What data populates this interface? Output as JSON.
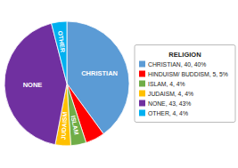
{
  "chart_data": {
    "type": "pie",
    "title": "RELIGION",
    "categories": [
      "CHRISTIAN, 40, 40%",
      "HINDUISM/ BUDDISM, 5, 5%",
      "ISLAM, 4, 4%",
      "JUDAISM, 4, 4%",
      "NONE, 43, 43%",
      "OTHER, 4, 4%"
    ],
    "wedge_labels": [
      "CHRISTIAN",
      null,
      "ISLAM",
      "JUDAISM",
      "NONE",
      "OTHER"
    ],
    "values": [
      40,
      5,
      4,
      4,
      43,
      4
    ],
    "colors": [
      "#5B9BD5",
      "#FF0000",
      "#70AD47",
      "#FFC000",
      "#7030A0",
      "#00B0F0"
    ],
    "legend": "right"
  }
}
